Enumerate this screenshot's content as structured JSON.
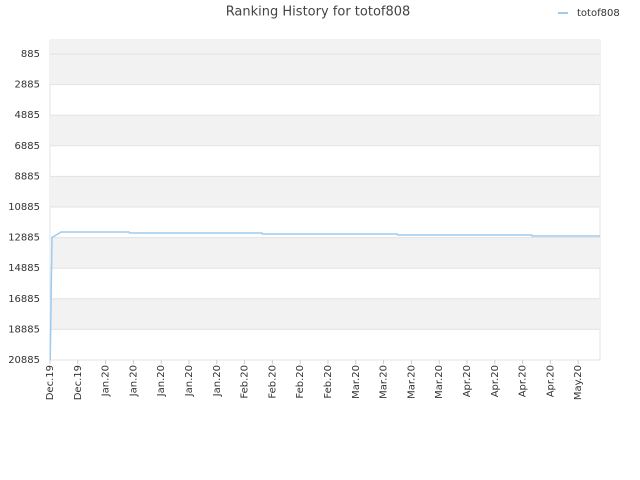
{
  "chart_data": {
    "type": "line",
    "title": "Ranking History for totof808",
    "xlim": [
      0,
      138.5
    ],
    "xticks": [
      {
        "value": 0,
        "label": "Dec.19"
      },
      {
        "value": 7,
        "label": "Dec.19"
      },
      {
        "value": 14,
        "label": "Jan.20"
      },
      {
        "value": 21,
        "label": "Jan.20"
      },
      {
        "value": 28,
        "label": "Jan.20"
      },
      {
        "value": 35,
        "label": "Jan.20"
      },
      {
        "value": 42,
        "label": "Jan.20"
      },
      {
        "value": 49,
        "label": "Feb.20"
      },
      {
        "value": 56,
        "label": "Feb.20"
      },
      {
        "value": 63,
        "label": "Feb.20"
      },
      {
        "value": 70,
        "label": "Feb.20"
      },
      {
        "value": 77,
        "label": "Mar.20"
      },
      {
        "value": 84,
        "label": "Mar.20"
      },
      {
        "value": 91,
        "label": "Mar.20"
      },
      {
        "value": 98,
        "label": "Mar.20"
      },
      {
        "value": 105,
        "label": "Apr.20"
      },
      {
        "value": 112,
        "label": "Apr.20"
      },
      {
        "value": 119,
        "label": "Apr.20"
      },
      {
        "value": 126,
        "label": "Apr.20"
      },
      {
        "value": 133,
        "label": "May.20"
      }
    ],
    "ylim": [
      20885,
      -30
    ],
    "yticks": [
      885,
      2885,
      4885,
      6885,
      8885,
      10885,
      12885,
      14885,
      16885,
      18885,
      20885
    ],
    "grid": true,
    "legend": "top-right",
    "series": [
      {
        "name": "totof808",
        "color": "#9fcbef",
        "x": [
          0.05,
          0.25,
          0.5,
          2.8,
          19.9,
          20,
          53.4,
          53.5,
          87.4,
          87.5,
          121.3,
          121.4,
          138.5
        ],
        "values": [
          20885,
          17420,
          12880,
          12520,
          12520,
          12585,
          12585,
          12650,
          12650,
          12715,
          12715,
          12780,
          12780
        ]
      }
    ]
  }
}
